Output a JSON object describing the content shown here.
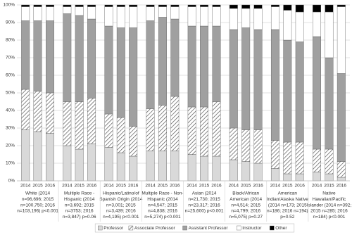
{
  "chart_data": {
    "type": "stacked_bar_100",
    "groups": [
      {
        "label": [
          "White (2014",
          "n=96,696; 2015",
          "n=100,750; 2016",
          "n=103,196) p<0.001"
        ],
        "categories": [
          "2014",
          "2015",
          "2016"
        ]
      },
      {
        "label": [
          "Multiple Race -",
          "Hispanic (2014",
          "n=3,692; 2015",
          "n=3753; 2016",
          "n=3,847) p=0.06"
        ],
        "categories": [
          "2014",
          "2015",
          "2016"
        ]
      },
      {
        "label": [
          "Hispanic/Latino/of",
          "Spanish Origin (2014",
          "n=3,001; 2015",
          "n=3,439; 2016",
          "n=4,195) p<0.001"
        ],
        "categories": [
          "2014",
          "2015",
          "2016"
        ]
      },
      {
        "label": [
          "Multiple Race - Non-",
          "Hispanic (2014",
          "n=4,547; 2015",
          "n=4,838; 2016",
          "n=5,274) p<0.001"
        ],
        "categories": [
          "2014",
          "2015",
          "2016"
        ]
      },
      {
        "label": [
          "Asian (2014",
          "n=21,730; 2015",
          "n=23,317; 2016",
          "n=25,600) p<0.001"
        ],
        "categories": [
          "2014",
          "2015",
          "2016"
        ]
      },
      {
        "label": [
          "Black/African",
          "American (2014",
          "n=4,514; 2015",
          "n=4,799; 2016",
          "n=5,075) p=0.27"
        ],
        "categories": [
          "2014",
          "2015",
          "2016"
        ]
      },
      {
        "label": [
          "American",
          "Indian/Alaska Native",
          "(2014 n=173; 2015",
          "n=186; 2016 n=194)",
          "p=0.52"
        ],
        "categories": [
          "2014",
          "2015",
          "2016"
        ]
      },
      {
        "label": [
          "Native",
          "Hawaiian/Pacific",
          "Islander (2014 n=392;",
          "2015 n=285; 2016",
          "n=184) p<0.001"
        ],
        "categories": [
          "2014",
          "2015",
          "2016"
        ]
      }
    ],
    "series": [
      {
        "name": "Professor",
        "color": "#d9d9d9",
        "hatch": false,
        "values": [
          29,
          28,
          27,
          20,
          18,
          21,
          19,
          16,
          14,
          17,
          17,
          17,
          15,
          14,
          14,
          12,
          11,
          10,
          7,
          4,
          4,
          5,
          4,
          2
        ]
      },
      {
        "name": "Associate Professor",
        "color": "#ffffff",
        "hatch": true,
        "values": [
          23,
          23,
          23,
          25,
          27,
          26,
          19,
          20,
          17,
          24,
          26,
          31,
          27,
          28,
          31,
          18,
          18,
          19,
          16,
          18,
          18,
          13,
          14,
          9
        ]
      },
      {
        "name": "Assistant Professor",
        "color": "#a0a0a0",
        "hatch": false,
        "values": [
          39,
          40,
          41,
          50,
          49,
          45,
          50,
          51,
          56,
          50,
          50,
          44,
          46,
          46,
          43,
          56,
          58,
          57,
          63,
          58,
          57,
          64,
          52,
          50
        ]
      },
      {
        "name": "Instructor",
        "color": "#ffffff",
        "hatch": false,
        "values": [
          8,
          8,
          8,
          4,
          5,
          7,
          11,
          12,
          12,
          8,
          6,
          7,
          11,
          11,
          11,
          12,
          11,
          12,
          13,
          17,
          17,
          14,
          26,
          38
        ]
      },
      {
        "name": "Other",
        "color": "#000000",
        "hatch": false,
        "values": [
          1,
          1,
          1,
          1,
          1,
          1,
          1,
          1,
          1,
          1,
          1,
          1,
          1,
          1,
          1,
          2,
          2,
          2,
          1,
          3,
          4,
          4,
          4,
          1
        ]
      }
    ],
    "ylim": [
      0,
      100
    ],
    "yticks": [
      {
        "value": 0,
        "label": "0%"
      },
      {
        "value": 10,
        "label": "10%"
      },
      {
        "value": 20,
        "label": "20%"
      },
      {
        "value": 30,
        "label": "30%"
      },
      {
        "value": 40,
        "label": "40%"
      },
      {
        "value": 50,
        "label": "50%"
      },
      {
        "value": 60,
        "label": "60%"
      },
      {
        "value": 70,
        "label": "70%"
      },
      {
        "value": 80,
        "label": "80%"
      },
      {
        "value": 90,
        "label": "90%"
      },
      {
        "value": 100,
        "label": "100%"
      }
    ],
    "grid": true
  }
}
